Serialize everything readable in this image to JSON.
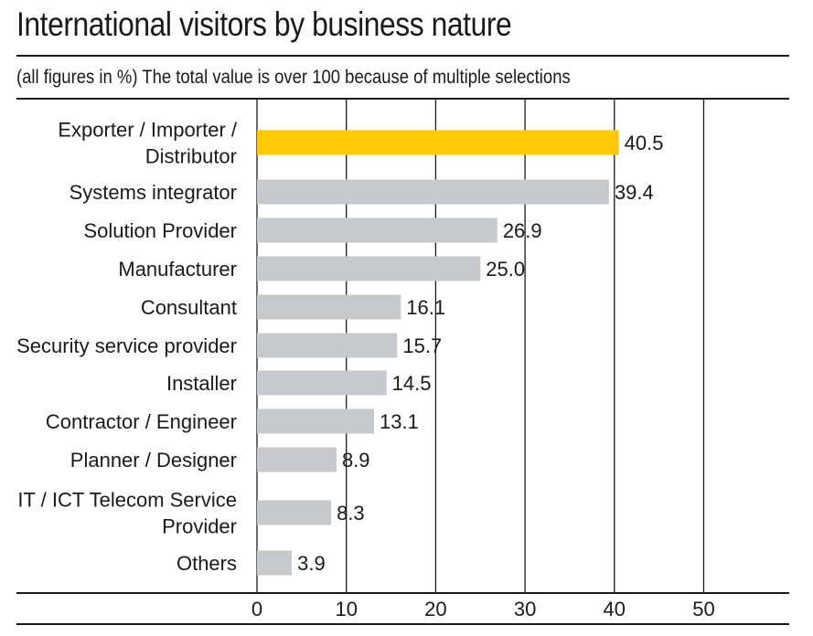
{
  "chart_data": {
    "type": "bar",
    "orientation": "horizontal",
    "title": "International visitors by business nature",
    "subtitle": "(all figures in %) The total value is over 100 because of multiple selections",
    "categories": [
      [
        "Exporter / Importer /",
        "Distributor"
      ],
      [
        "Systems integrator"
      ],
      [
        "Solution Provider"
      ],
      [
        "Manufacturer"
      ],
      [
        "Consultant"
      ],
      [
        "Security service provider"
      ],
      [
        "Installer"
      ],
      [
        "Contractor / Engineer"
      ],
      [
        "Planner / Designer"
      ],
      [
        "IT / ICT Telecom Service",
        "Provider"
      ],
      [
        "Others"
      ]
    ],
    "values": [
      40.5,
      39.4,
      26.9,
      25.0,
      16.1,
      15.7,
      14.5,
      13.1,
      8.9,
      8.3,
      3.9
    ],
    "value_labels": [
      "40.5",
      "39.4",
      "26.9",
      "25.0",
      "16.1",
      "15.7",
      "14.5",
      "13.1",
      "8.9",
      "8.3",
      "3.9"
    ],
    "x_ticks": [
      "0",
      "10",
      "20",
      "30",
      "40",
      "50"
    ],
    "xlim": [
      0,
      50
    ],
    "grid": "vertical",
    "colors": {
      "highlight": "#FFC800",
      "bar": "#C8C9CB",
      "grid": "#1a1a1a"
    }
  }
}
